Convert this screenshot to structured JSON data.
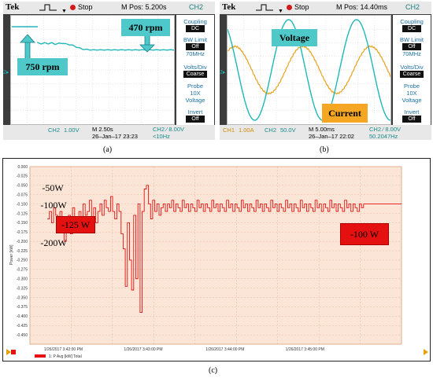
{
  "colors": {
    "cyan": "#1fb8b8",
    "teal_box": "#4ec8c8",
    "orange": "#e8a21c",
    "red": "#e51010",
    "plot_bg": "#fbe5d6",
    "grid": "#e4b9a0"
  },
  "panel_a": {
    "brand": "Tek",
    "status": "Stop",
    "m_pos": "M Pos: 5.200s",
    "ch_tag": "CH2",
    "side": {
      "coupling_label": "Coupling",
      "coupling_value": "DC",
      "bw_label": "BW Limit",
      "bw_value": "Off",
      "bw_freq": "70MHz",
      "volts_label": "Volts/Div",
      "volts_value": "Coarse",
      "probe_label": "Probe",
      "probe_value1": "10X",
      "probe_value2": "Voltage",
      "invert_label": "Invert",
      "invert_value": "Off"
    },
    "footer": {
      "ch2": "CH2",
      "ch2_scale": "1.00V",
      "m": "M 2.50s",
      "date": "26–Jan–17 23:23",
      "trig": "CH2 ∕ 8.00V",
      "freq": "<10Hz"
    },
    "marker": "2▸",
    "labels": {
      "rpm750": "750 rpm",
      "rpm470": "470 rpm"
    },
    "caption": "(a)"
  },
  "panel_b": {
    "brand": "Tek",
    "status": "Stop",
    "m_pos": "M Pos: 14.40ms",
    "ch_tag": "CH2",
    "side": {
      "coupling_label": "Coupling",
      "coupling_value": "DC",
      "bw_label": "BW Limit",
      "bw_value": "Off",
      "bw_freq": "70MHz",
      "volts_label": "Volts/Div",
      "volts_value": "Coarse",
      "probe_label": "Probe",
      "probe_value1": "10X",
      "probe_value2": "Voltage",
      "invert_label": "Invert",
      "invert_value": "Off"
    },
    "footer": {
      "ch1": "CH1",
      "ch1_scale": "1.00A",
      "ch2": "CH2",
      "ch2_scale": "50.0V",
      "m": "M 5.00ms",
      "date": "26–Jan–17 22:02",
      "trig": "CH2 ∕ 8.00V",
      "freq": "50.2047Hz"
    },
    "marker": "2▸",
    "labels": {
      "voltage": "Voltage",
      "current": "Current"
    },
    "caption": "(b)"
  },
  "panel_c": {
    "caption": "(c)",
    "annotations": {
      "w50": "-50W",
      "w100": "-100W",
      "w200": "-200W",
      "w125": "-125 W",
      "w100b": "-100 W"
    },
    "legend": "1: P Avg [kW] Total"
  },
  "chart_data": [
    {
      "type": "line",
      "panel": "a",
      "series": [
        {
          "values": [
            0.58,
            0.59,
            0.58,
            0.59,
            0.58,
            0.6,
            0.59,
            0.58,
            0.6,
            0.61,
            0.63,
            0.66,
            0.69,
            0.71,
            0.72,
            0.72,
            0.73,
            0.72,
            0.73,
            0.72,
            0.73,
            0.72,
            0.73,
            0.72,
            0.73,
            0.72,
            0.73,
            0.72,
            0.73,
            0.72,
            0.73,
            0.72,
            0.73,
            0.72,
            0.73,
            0.72,
            0.73,
            0.72,
            0.73,
            0.72
          ]
        }
      ]
    },
    {
      "type": "line",
      "panel": "b",
      "series": [
        {
          "name": "Voltage"
        },
        {
          "name": "Current"
        }
      ]
    },
    {
      "type": "line",
      "panel": "c",
      "ylabel": "Power [kW]",
      "ylim": [
        -0.475,
        0.0
      ],
      "yticks": [
        "0.000",
        "-0.025",
        "-0.050",
        "-0.075",
        "-0.100",
        "-0.125",
        "-0.150",
        "-0.175",
        "-0.200",
        "-0.225",
        "-0.250",
        "-0.275",
        "-0.300",
        "-0.325",
        "-0.350",
        "-0.375",
        "-0.400",
        "-0.425",
        "-0.450"
      ],
      "xticks": [
        "1/26/2017 3:42:00 PM",
        "1/26/2017 3:43:00 PM",
        "1/26/2017 3:44:00 PM",
        "1/26/2017 3:45:00 PM"
      ],
      "series": [
        {
          "name": "1: P Avg [kW] Total",
          "values": [
            -0.14,
            -0.12,
            -0.15,
            -0.11,
            -0.13,
            -0.16,
            -0.12,
            -0.14,
            -0.2,
            -0.15,
            -0.13,
            -0.18,
            -0.11,
            -0.17,
            -0.14,
            -0.12,
            -0.16,
            -0.1,
            -0.13,
            -0.12,
            -0.09,
            -0.14,
            -0.11,
            -0.15,
            -0.12,
            -0.1,
            -0.13,
            -0.09,
            -0.11,
            -0.12,
            -0.08,
            -0.12,
            -0.14,
            -0.1,
            -0.12,
            -0.18,
            -0.22,
            -0.32,
            -0.15,
            -0.25,
            -0.33,
            -0.13,
            -0.3,
            -0.1,
            -0.39,
            -0.12,
            -0.06,
            -0.05,
            -0.1,
            -0.14,
            -0.09,
            -0.12,
            -0.1,
            -0.13,
            -0.11,
            -0.1,
            -0.12,
            -0.1,
            -0.11,
            -0.09,
            -0.12,
            -0.1,
            -0.11,
            -0.12,
            -0.09,
            -0.11,
            -0.1,
            -0.12,
            -0.1,
            -0.11,
            -0.12,
            -0.09,
            -0.11,
            -0.1,
            -0.12,
            -0.1,
            -0.11,
            -0.12,
            -0.09,
            -0.11,
            -0.1,
            -0.12,
            -0.1,
            -0.11,
            -0.12,
            -0.09,
            -0.11,
            -0.1,
            -0.12,
            -0.1,
            -0.11,
            -0.12,
            -0.09,
            -0.11,
            -0.1,
            -0.12,
            -0.1,
            -0.11,
            -0.12,
            -0.09,
            -0.11,
            -0.1,
            -0.12,
            -0.1,
            -0.11,
            -0.12,
            -0.09,
            -0.11,
            -0.1,
            -0.12,
            -0.1,
            -0.11,
            -0.12,
            -0.09,
            -0.11,
            -0.1,
            -0.12,
            -0.1,
            -0.11,
            -0.12,
            -0.09,
            -0.11,
            -0.1,
            -0.12,
            -0.1,
            -0.11,
            -0.12,
            -0.09,
            -0.11,
            -0.1,
            -0.12,
            -0.1,
            -0.11,
            -0.12,
            -0.09,
            -0.11,
            -0.1,
            -0.12,
            -0.1,
            -0.11,
            -0.12,
            -0.09,
            -0.11,
            -0.1,
            -0.12,
            -0.1,
            -0.11,
            -0.12,
            -0.1,
            -0.11,
            -0.1,
            -0.1,
            -0.1,
            -0.1,
            -0.1,
            -0.1,
            -0.1,
            -0.1,
            -0.1,
            -0.1,
            -0.1,
            -0.1,
            -0.1,
            -0.1,
            -0.1,
            -0.1,
            -0.1,
            -0.1,
            -0.1
          ]
        }
      ]
    }
  ]
}
